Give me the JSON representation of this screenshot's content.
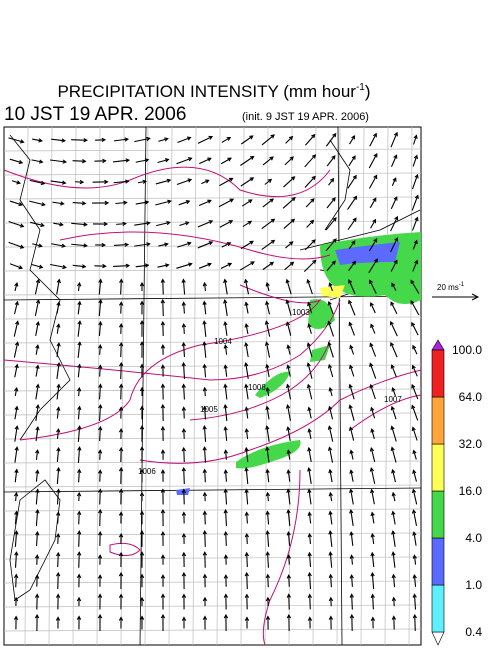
{
  "header": {
    "title": {
      "text": "PRECIPITATION INTENSITY (mm hour",
      "superscript": "-1",
      "close": ")"
    },
    "valid_time": "10 JST 19 APR. 2006",
    "init_time": "(init. 9 JST 19 APR. 2006)"
  },
  "reference_vector": {
    "text": "20 ms",
    "superscript": "-1"
  },
  "contour_labels": [
    "1003",
    "1004",
    "1005",
    "1006",
    "1007",
    "1008"
  ],
  "colorbar": {
    "levels": [
      0.4,
      {
        "value": 1.0,
        "label": "1.0"
      },
      {
        "value": 4.0,
        "label": "4.0"
      },
      {
        "value": 16.0,
        "label": "16.0"
      },
      {
        "value": 32.0,
        "label": "32.0"
      },
      {
        "value": 64.0,
        "label": "64.0"
      },
      {
        "value": 100.0,
        "label": "100.0"
      }
    ],
    "colors": [
      "#5ff0ff",
      "#5b6bff",
      "#45d84a",
      "#ffff55",
      "#ffa53a",
      "#ee2020"
    ]
  }
}
